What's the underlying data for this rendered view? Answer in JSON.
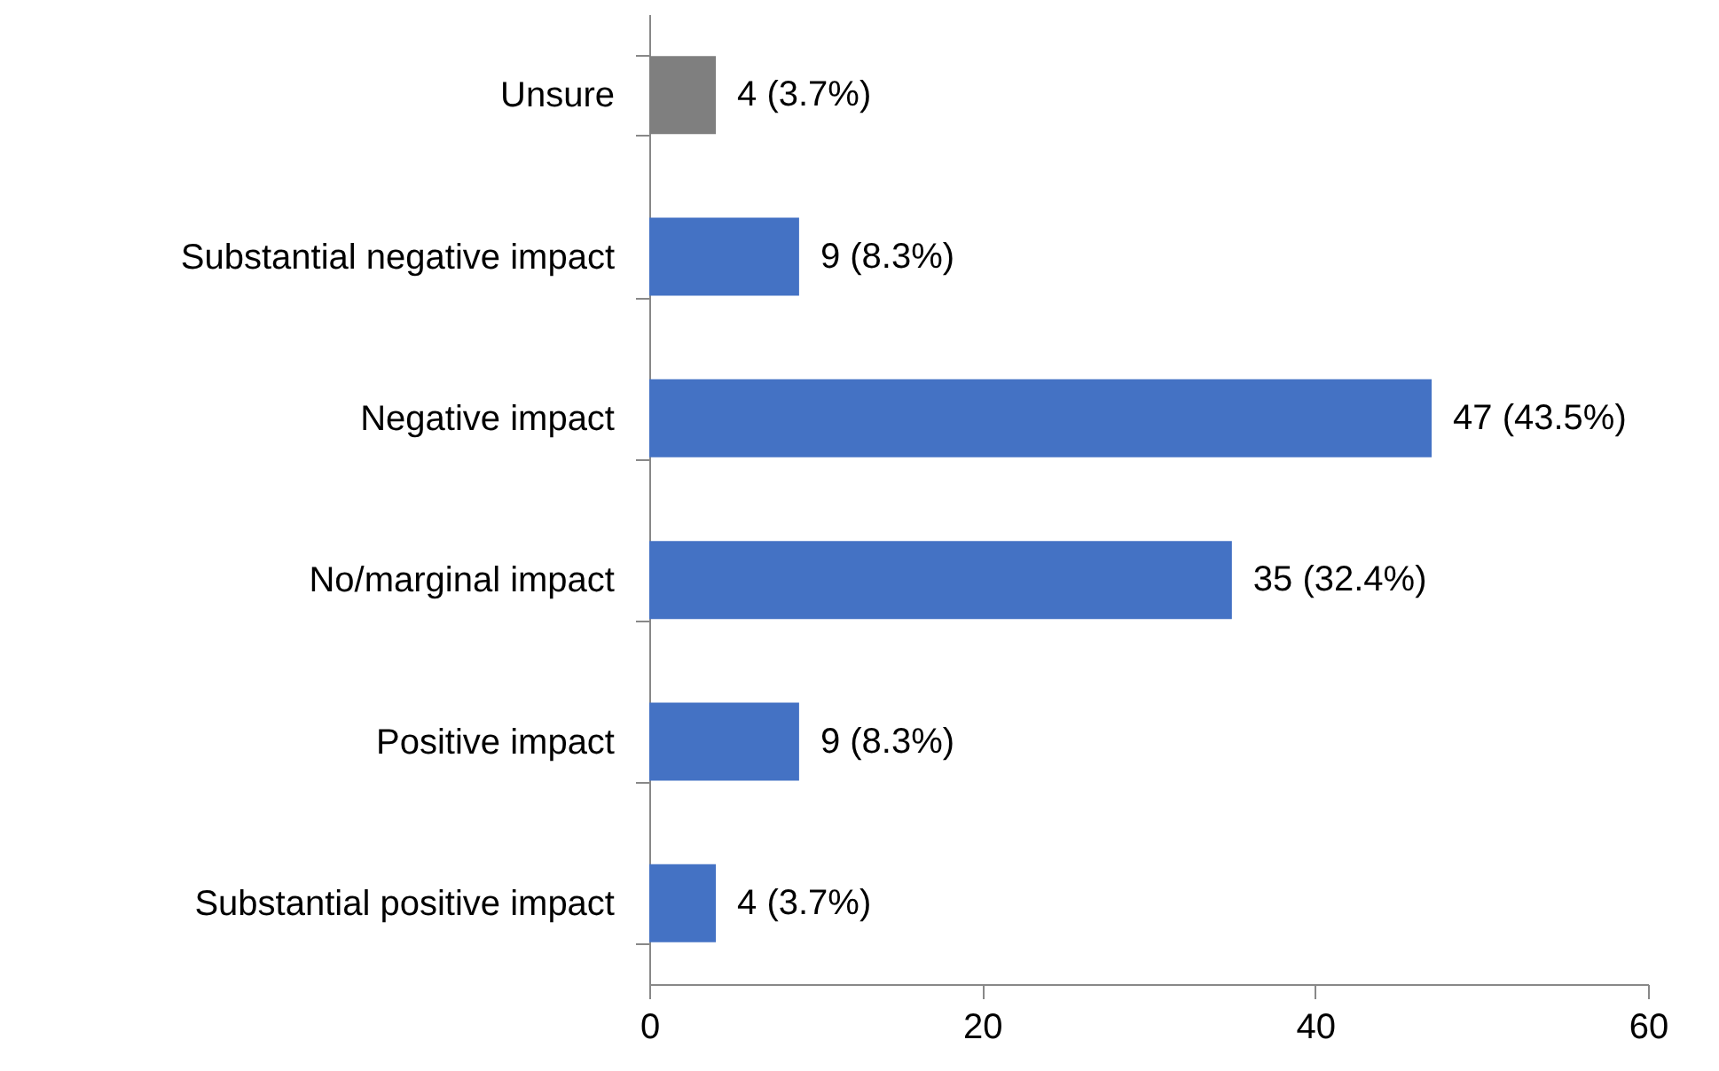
{
  "chart_data": {
    "type": "bar",
    "orientation": "horizontal",
    "categories": [
      "Unsure",
      "Substantial negative impact",
      "Negative impact",
      "No/marginal impact",
      "Positive impact",
      "Substantial positive impact"
    ],
    "values": [
      4,
      9,
      47,
      35,
      9,
      4
    ],
    "colors": [
      "#7f7f7f",
      "#4472c4",
      "#4472c4",
      "#4472c4",
      "#4472c4",
      "#4472c4"
    ],
    "value_labels": [
      "4 (3.7%)",
      "9 (8.3%)",
      "47 (43.5%)",
      "35 (32.4%)",
      "9 (8.3%)",
      "4 (3.7%)"
    ],
    "xlim": [
      0,
      60
    ],
    "xticks": [
      0,
      20,
      40,
      60
    ],
    "grid": false
  }
}
